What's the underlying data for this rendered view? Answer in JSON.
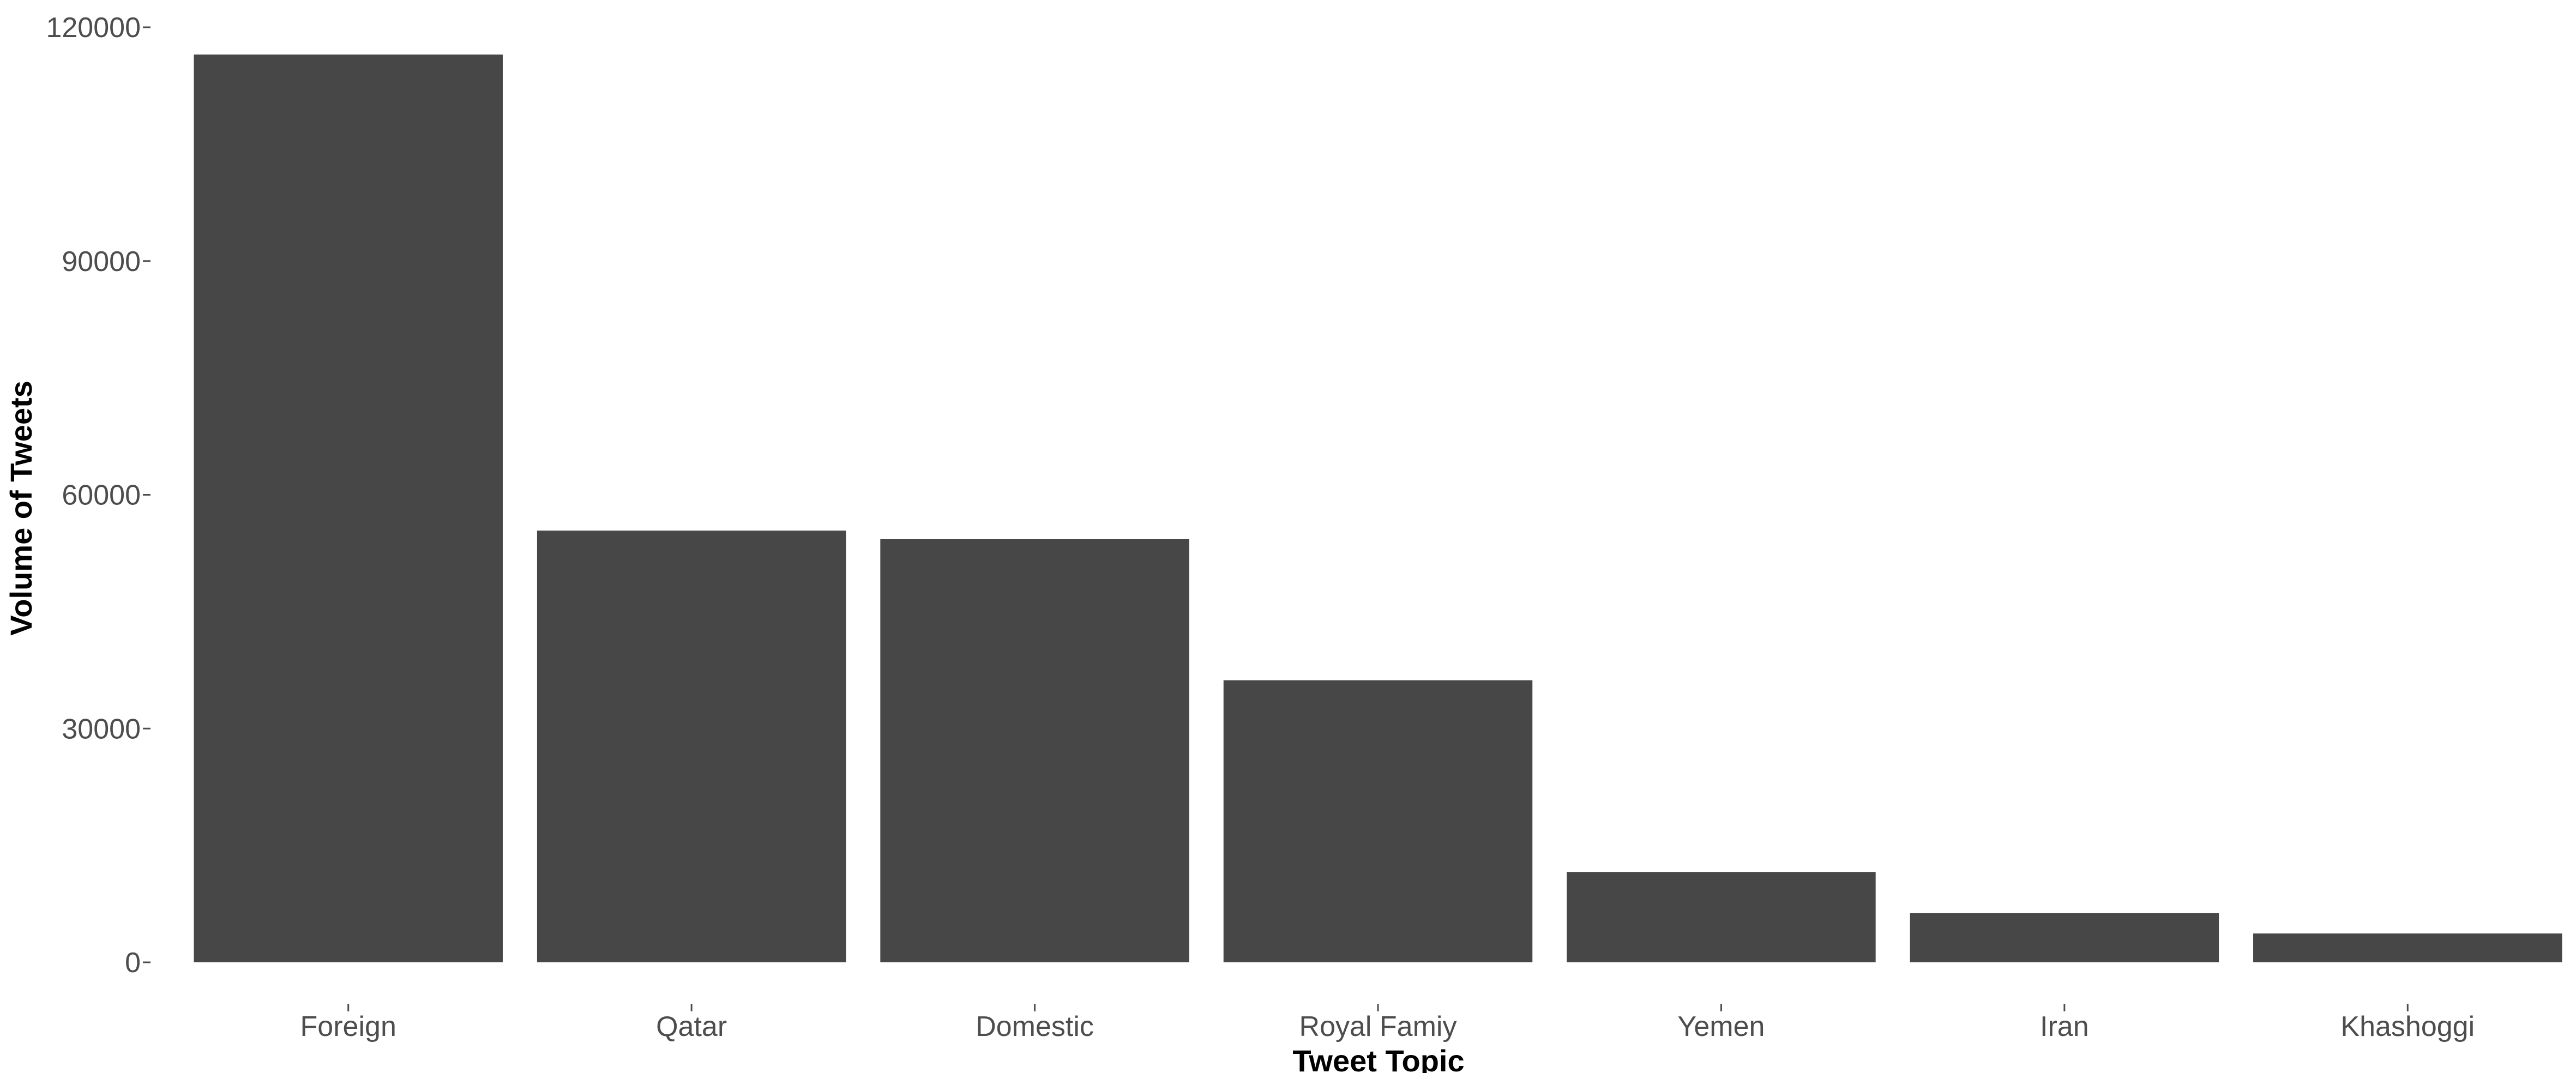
{
  "chart_data": {
    "type": "bar",
    "title": "",
    "xlabel": "Tweet Topic",
    "ylabel": "Volume of Tweets",
    "categories": [
      "Foreign",
      "Qatar",
      "Domestic",
      "Royal Famiy",
      "Yemen",
      "Iran",
      "Khashoggi"
    ],
    "values": [
      116500,
      55400,
      54300,
      36200,
      11600,
      6300,
      3700
    ],
    "ylim": [
      0,
      120000
    ],
    "yticks": [
      0,
      30000,
      60000,
      90000,
      120000
    ],
    "grid": false,
    "legend": "none",
    "bar_color": "#474747"
  }
}
